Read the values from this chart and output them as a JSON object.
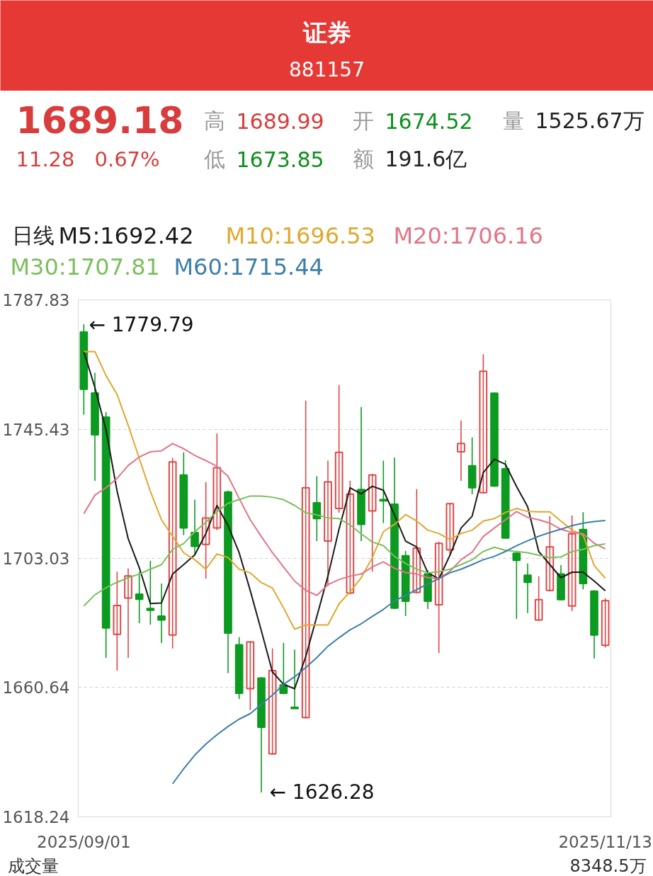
{
  "chart_data": {
    "type": "candlestick",
    "title": "证券",
    "subtitle": "881157",
    "categories": [
      "2025/09/01",
      null,
      null,
      null,
      null,
      null,
      null,
      null,
      null,
      null,
      null,
      null,
      null,
      null,
      null,
      null,
      null,
      null,
      null,
      null,
      null,
      null,
      null,
      null,
      null,
      null,
      null,
      null,
      null,
      null,
      null,
      null,
      null,
      null,
      null,
      null,
      null,
      null,
      null,
      null,
      null,
      null,
      null,
      null,
      null,
      null,
      null,
      "2025/11/13"
    ],
    "ohlc": [
      [
        1777.3,
        1779.79,
        1750.2,
        1758.5
      ],
      [
        1757.3,
        1763.9,
        1728.5,
        1743.6
      ],
      [
        1749.4,
        1751.0,
        1670.4,
        1680.2
      ],
      [
        1678.1,
        1698.7,
        1666.2,
        1687.6
      ],
      [
        1690.0,
        1699.8,
        1670.4,
        1697.3
      ],
      [
        1691.3,
        1698.6,
        1681.8,
        1689.6
      ],
      [
        1686.6,
        1702.2,
        1681.3,
        1686.0
      ],
      [
        1684.1,
        1694.8,
        1675.3,
        1682.8
      ],
      [
        1677.9,
        1736.0,
        1673.5,
        1734.7
      ],
      [
        1730.4,
        1737.8,
        1710.7,
        1713.0
      ],
      [
        1711.5,
        1722.3,
        1704.1,
        1707.0
      ],
      [
        1707.6,
        1728.1,
        1696.4,
        1716.3
      ],
      [
        1713.0,
        1744.0,
        1712.3,
        1732.8
      ],
      [
        1724.8,
        1725.3,
        1665.4,
        1678.5
      ],
      [
        1674.7,
        1677.2,
        1656.9,
        1658.8
      ],
      [
        1660.3,
        1675.9,
        1653.3,
        1675.6
      ],
      [
        1663.8,
        1664.1,
        1626.28,
        1647.6
      ],
      [
        1638.9,
        1673.5,
        1638.6,
        1666.2
      ],
      [
        1661.5,
        1675.3,
        1658.5,
        1658.8
      ],
      [
        1654.2,
        1673.1,
        1653.8,
        1653.8
      ],
      [
        1650.8,
        1754.8,
        1650.5,
        1726.2
      ],
      [
        1721.3,
        1730.0,
        1708.7,
        1716.1
      ],
      [
        1708.7,
        1735.1,
        1694.0,
        1728.1
      ],
      [
        1719.4,
        1759.9,
        1718.0,
        1737.8
      ],
      [
        1691.7,
        1728.5,
        1691.2,
        1724.1
      ],
      [
        1725.6,
        1752.7,
        1708.7,
        1714.2
      ],
      [
        1718.6,
        1730.8,
        1698.7,
        1730.4
      ],
      [
        1722.3,
        1735.1,
        1714.6,
        1721.9
      ],
      [
        1720.8,
        1736.1,
        1686.4,
        1686.7
      ],
      [
        1703.9,
        1705.5,
        1684.1,
        1689.0
      ],
      [
        1691.9,
        1725.8,
        1691.5,
        1706.4
      ],
      [
        1697.9,
        1699.2,
        1686.4,
        1689.0
      ],
      [
        1687.8,
        1708.5,
        1672.0,
        1708.0
      ],
      [
        1705.8,
        1721.3,
        1704.1,
        1721.0
      ],
      [
        1738.0,
        1748.3,
        1728.5,
        1740.7
      ],
      [
        1733.4,
        1742.7,
        1724.1,
        1726.2
      ],
      [
        1724.6,
        1770.0,
        1724.3,
        1764.4
      ],
      [
        1757.2,
        1757.5,
        1726.5,
        1726.8
      ],
      [
        1732.4,
        1735.2,
        1709.5,
        1709.7
      ],
      [
        1704.7,
        1705.0,
        1683.2,
        1702.4
      ],
      [
        1697.5,
        1701.4,
        1685.1,
        1695.2
      ],
      [
        1682.8,
        1697.2,
        1682.5,
        1689.5
      ],
      [
        1692.5,
        1716.9,
        1692.2,
        1706.8
      ],
      [
        1697.9,
        1700.8,
        1689.2,
        1689.5
      ],
      [
        1687.4,
        1717.1,
        1685.7,
        1711.1
      ],
      [
        1712.5,
        1718.2,
        1692.9,
        1694.8
      ],
      [
        1692.3,
        1692.6,
        1670.2,
        1677.9
      ],
      [
        1674.52,
        1689.99,
        1673.85,
        1689.18
      ]
    ],
    "colors": [
      "#0c9a20",
      "#0c9a20",
      "#0c9a20",
      "#dc4848",
      "#dc4848",
      "#0c9a20",
      "#0c9a20",
      "#0c9a20",
      "#dc4848",
      "#0c9a20",
      "#0c9a20",
      "#dc4848",
      "#dc4848",
      "#0c9a20",
      "#0c9a20",
      "#dc4848",
      "#0c9a20",
      "#dc4848",
      "#0c9a20",
      "#0c9a20",
      "#dc4848",
      "#0c9a20",
      "#dc4848",
      "#dc4848",
      "#dc4848",
      "#0c9a20",
      "#dc4848",
      "#0c9a20",
      "#0c9a20",
      "#0c9a20",
      "#dc4848",
      "#0c9a20",
      "#dc4848",
      "#dc4848",
      "#dc4848",
      "#0c9a20",
      "#dc4848",
      "#0c9a20",
      "#0c9a20",
      "#0c9a20",
      "#0c9a20",
      "#dc4848",
      "#dc4848",
      "#0c9a20",
      "#dc4848",
      "#0c9a20",
      "#0c9a20",
      "#dc4848"
    ],
    "series": [
      {
        "name": "M5:1692.42",
        "type": "line",
        "color": "#1a1a1a",
        "values": [
          1770.9,
          1759.1,
          1745.2,
          1725.1,
          1709.5,
          1700.0,
          1688.2,
          1688.4,
          1697.9,
          1701.0,
          1704.2,
          1711.2,
          1720.4,
          1713.8,
          1704.9,
          1692.5,
          1679.3,
          1665.8,
          1661.7,
          1660.3,
          1670.8,
          1684.0,
          1697.2,
          1712.6,
          1726.2,
          1724.2,
          1726.7,
          1725.4,
          1717.3,
          1708.7,
          1706.8,
          1698.3,
          1696.3,
          1704.1,
          1713.0,
          1716.9,
          1731.2,
          1735.6,
          1733.9,
          1726.6,
          1720.0,
          1705.3,
          1701.0,
          1696.7,
          1698.5,
          1698.5,
          1695.6,
          1692.42
        ]
      },
      {
        "name": "M10:1696.53",
        "type": "line",
        "color": "#e0a82e",
        "values": [
          1770.9,
          1770.9,
          1763.0,
          1756.8,
          1746.7,
          1735.8,
          1725.0,
          1715.7,
          1710.3,
          1704.9,
          1702.6,
          1699.5,
          1704.5,
          1703.3,
          1699.5,
          1698.3,
          1695.1,
          1693.3,
          1686.8,
          1679.8,
          1681.2,
          1681.2,
          1681.2,
          1688.1,
          1692.1,
          1696.7,
          1703.3,
          1711.8,
          1714.2,
          1717.4,
          1715.3,
          1712.3,
          1711.2,
          1709.2,
          1711.2,
          1712.3,
          1715.3,
          1716.1,
          1718.1,
          1719.4,
          1718.4,
          1718.3,
          1718.3,
          1715.3,
          1712.3,
          1710.7,
          1700.7,
          1696.53
        ]
      },
      {
        "name": "M20:1706.16",
        "type": "line",
        "color": "#e27587",
        "values": [
          1717.7,
          1723.8,
          1726.2,
          1729.3,
          1733.5,
          1736.3,
          1738.0,
          1738.3,
          1740.7,
          1739.0,
          1736.8,
          1735.1,
          1733.2,
          1730.0,
          1722.7,
          1715.7,
          1710.2,
          1704.9,
          1700.2,
          1695.6,
          1692.6,
          1690.9,
          1694.4,
          1696.1,
          1697.2,
          1697.9,
          1700.2,
          1701.9,
          1699.8,
          1698.4,
          1697.9,
          1696.7,
          1696.4,
          1698.8,
          1702.6,
          1705.1,
          1710.2,
          1713.0,
          1715.7,
          1718.4,
          1716.5,
          1715.7,
          1714.6,
          1712.6,
          1711.5,
          1711.1,
          1708.0,
          1706.16
        ]
      },
      {
        "name": "M30:1707.81",
        "type": "line",
        "color": "#7bbf5e",
        "values": [
          1687.4,
          1691.1,
          1693.4,
          1695.2,
          1696.7,
          1697.9,
          1699.5,
          1701.0,
          1706.0,
          1707.9,
          1711.8,
          1714.9,
          1718.4,
          1721.1,
          1722.3,
          1723.5,
          1723.5,
          1723.1,
          1722.3,
          1720.4,
          1718.0,
          1717.3,
          1716.3,
          1716.1,
          1714.0,
          1711.1,
          1708.4,
          1707.2,
          1703.7,
          1701.4,
          1699.5,
          1698.3,
          1698.7,
          1699.5,
          1701.0,
          1702.6,
          1705.3,
          1706.7,
          1705.7,
          1705.3,
          1704.9,
          1704.1,
          1703.3,
          1703.5,
          1705.3,
          1706.0,
          1707.2,
          1707.81
        ]
      },
      {
        "name": "M60:1715.44",
        "type": "line",
        "color": "#3d7fa8",
        "values": [
          null,
          null,
          null,
          null,
          null,
          null,
          null,
          null,
          1629.1,
          1634.0,
          1638.5,
          1642.1,
          1645.2,
          1647.9,
          1650.3,
          1652.1,
          1655.2,
          1658.2,
          1661.7,
          1664.2,
          1667.2,
          1670.5,
          1674.2,
          1677.0,
          1679.6,
          1681.6,
          1684.0,
          1686.3,
          1689.1,
          1690.9,
          1692.8,
          1694.7,
          1696.4,
          1698.3,
          1699.5,
          1701.0,
          1702.6,
          1703.7,
          1705.3,
          1707.2,
          1708.8,
          1710.3,
          1711.5,
          1712.6,
          1713.8,
          1714.6,
          1715.1,
          1715.44
        ]
      }
    ],
    "ylim": [
      1618.24,
      1787.83
    ],
    "yticks": [
      1618.24,
      1660.64,
      1703.03,
      1745.43,
      1787.83
    ],
    "grid": "y",
    "annotations": [
      "1689.18",
      "11.28",
      "0.67%",
      "高",
      "1689.99",
      "开",
      "1674.52",
      "量",
      "1525.67万",
      "低",
      "1673.85",
      "额",
      "191.6亿",
      "日线",
      {
        "text": "← 1779.79",
        "x": "2025/09/01",
        "y": 1779.79
      },
      "← 1626.28",
      "成交量",
      "8348.5万"
    ]
  }
}
